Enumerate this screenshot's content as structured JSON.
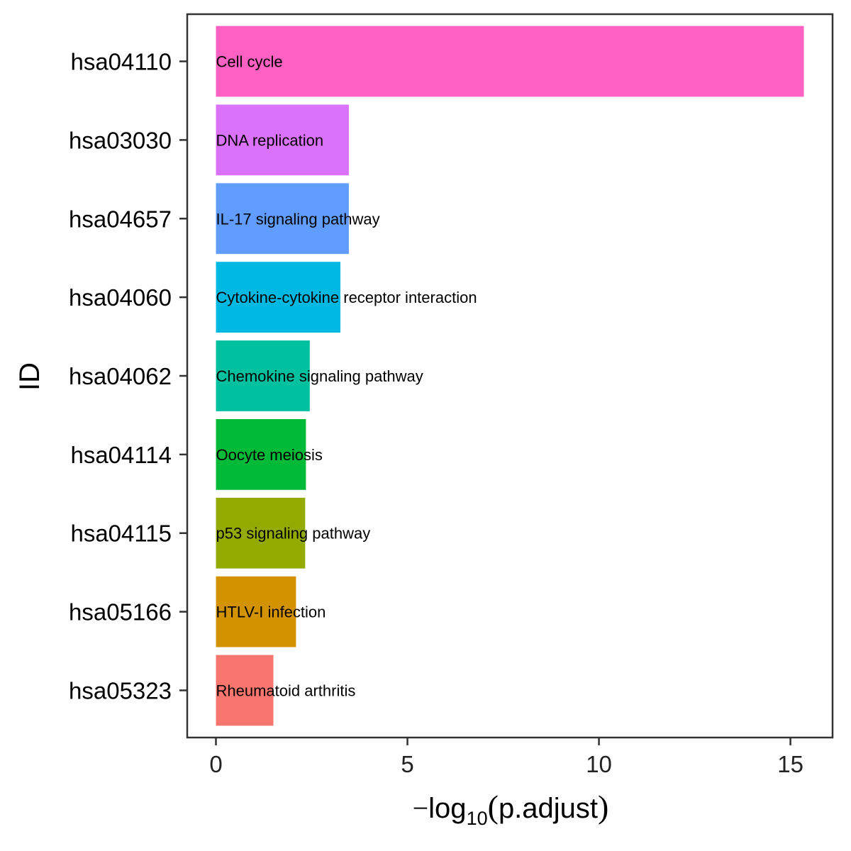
{
  "chart_data": {
    "type": "bar",
    "orientation": "horizontal",
    "title": "",
    "ylabel": "ID",
    "xlabel": {
      "prefix": "−",
      "func": "log",
      "subscript": "10",
      "open": "(",
      "arg": "p.adjust",
      "close": ")"
    },
    "xlim": [
      -0.75,
      16.1
    ],
    "xticks": [
      0,
      5,
      10,
      15
    ],
    "grid": false,
    "legend": "none",
    "bars": [
      {
        "id": "hsa04110",
        "label": "Cell cycle",
        "value": 15.35,
        "color": "#FF61C3"
      },
      {
        "id": "hsa03030",
        "label": "DNA replication",
        "value": 3.47,
        "color": "#DB72FB"
      },
      {
        "id": "hsa04657",
        "label": "IL-17 signaling pathway",
        "value": 3.47,
        "color": "#619CFF"
      },
      {
        "id": "hsa04060",
        "label": "Cytokine-cytokine receptor interaction",
        "value": 3.25,
        "color": "#00B9E3"
      },
      {
        "id": "hsa04062",
        "label": "Chemokine signaling pathway",
        "value": 2.45,
        "color": "#00C19F"
      },
      {
        "id": "hsa04114",
        "label": "Oocyte meiosis",
        "value": 2.35,
        "color": "#00BA38"
      },
      {
        "id": "hsa04115",
        "label": "p53 signaling pathway",
        "value": 2.33,
        "color": "#93AA00"
      },
      {
        "id": "hsa05166",
        "label": "HTLV-I infection",
        "value": 2.09,
        "color": "#D39200"
      },
      {
        "id": "hsa05323",
        "label": "Rheumatoid arthritis",
        "value": 1.5,
        "color": "#F8766D"
      }
    ]
  }
}
